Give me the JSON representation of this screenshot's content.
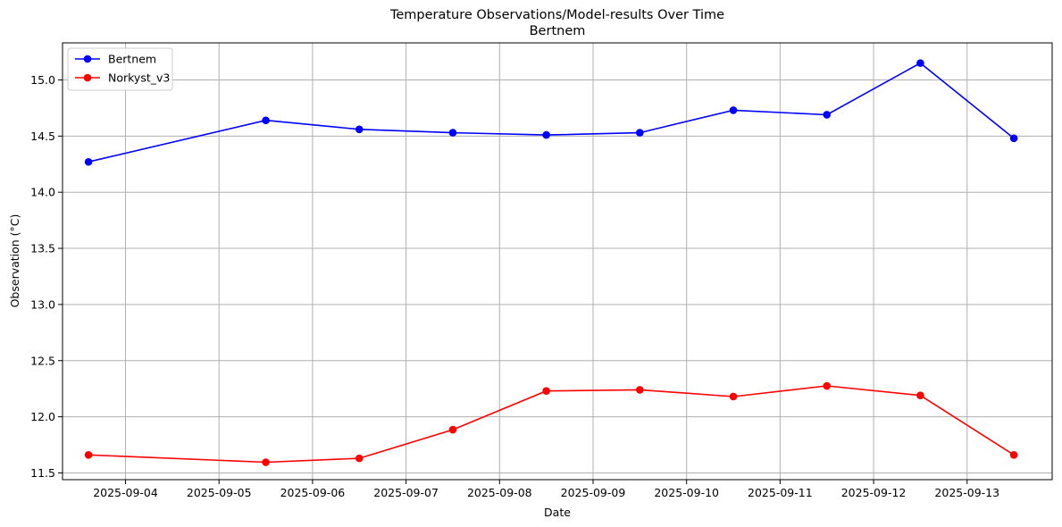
{
  "chart_data": {
    "type": "line",
    "title": "Temperature Observations/Model-results Over Time",
    "subtitle": "Bertnem",
    "xlabel": "Date",
    "ylabel": "Observation (°C)",
    "xlim": [
      "2025-09-03T07:50",
      "2025-09-13T21:50"
    ],
    "ylim": [
      11.44,
      15.33
    ],
    "x_ticks": [
      "2025-09-04",
      "2025-09-05",
      "2025-09-06",
      "2025-09-07",
      "2025-09-08",
      "2025-09-09",
      "2025-09-10",
      "2025-09-11",
      "2025-09-12",
      "2025-09-13"
    ],
    "y_ticks": [
      "11.5",
      "12.0",
      "12.5",
      "13.0",
      "13.5",
      "14.0",
      "14.5",
      "15.0"
    ],
    "grid": true,
    "legend_position": "upper-left",
    "series": [
      {
        "name": "Bertnem",
        "color": "#0000ff",
        "marker": "circle",
        "points": [
          {
            "x": "2025-09-03T14:30",
            "y": 14.27
          },
          {
            "x": "2025-09-05T12:00",
            "y": 14.64
          },
          {
            "x": "2025-09-06T12:00",
            "y": 14.56
          },
          {
            "x": "2025-09-07T12:00",
            "y": 14.53
          },
          {
            "x": "2025-09-08T12:00",
            "y": 14.51
          },
          {
            "x": "2025-09-09T12:00",
            "y": 14.53
          },
          {
            "x": "2025-09-10T12:00",
            "y": 14.73
          },
          {
            "x": "2025-09-11T12:00",
            "y": 14.69
          },
          {
            "x": "2025-09-12T12:00",
            "y": 15.15
          },
          {
            "x": "2025-09-13T12:00",
            "y": 14.48
          }
        ]
      },
      {
        "name": "Norkyst_v3",
        "color": "#ff0000",
        "marker": "circle",
        "points": [
          {
            "x": "2025-09-03T14:30",
            "y": 11.66
          },
          {
            "x": "2025-09-05T12:00",
            "y": 11.595
          },
          {
            "x": "2025-09-06T12:00",
            "y": 11.63
          },
          {
            "x": "2025-09-07T12:00",
            "y": 11.885
          },
          {
            "x": "2025-09-08T12:00",
            "y": 12.23
          },
          {
            "x": "2025-09-09T12:00",
            "y": 12.24
          },
          {
            "x": "2025-09-10T12:00",
            "y": 12.18
          },
          {
            "x": "2025-09-11T12:00",
            "y": 12.275
          },
          {
            "x": "2025-09-12T12:00",
            "y": 12.19
          },
          {
            "x": "2025-09-13T12:00",
            "y": 11.66
          }
        ]
      }
    ]
  }
}
